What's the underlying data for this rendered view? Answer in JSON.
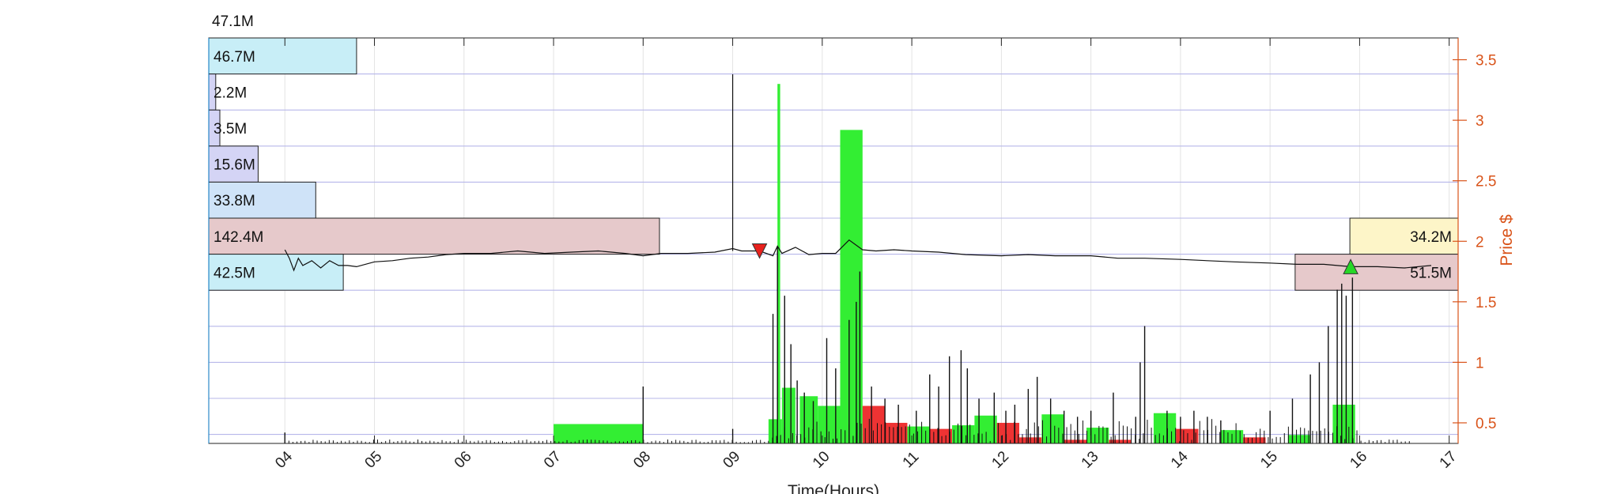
{
  "chart_data": {
    "type": "bar",
    "title": "",
    "top_value_label": "47.1M",
    "xlabel": "Time(Hours)",
    "ylabel": "Price $",
    "x_unit": "hour",
    "xlim": [
      3.15,
      17.1
    ],
    "ylim": [
      0.33,
      3.68
    ],
    "x_ticks": [
      {
        "value": 4,
        "label": "04"
      },
      {
        "value": 5,
        "label": "05"
      },
      {
        "value": 6,
        "label": "06"
      },
      {
        "value": 7,
        "label": "07"
      },
      {
        "value": 8,
        "label": "08"
      },
      {
        "value": 9,
        "label": "09"
      },
      {
        "value": 10,
        "label": "10"
      },
      {
        "value": 11,
        "label": "11"
      },
      {
        "value": 12,
        "label": "12"
      },
      {
        "value": 13,
        "label": "13"
      },
      {
        "value": 14,
        "label": "14"
      },
      {
        "value": 15,
        "label": "15"
      },
      {
        "value": 16,
        "label": "16"
      },
      {
        "value": 17,
        "label": "17"
      }
    ],
    "y_ticks": [
      {
        "value": 0.5,
        "label": "0.5"
      },
      {
        "value": 1,
        "label": "1"
      },
      {
        "value": 1.5,
        "label": "1.5"
      },
      {
        "value": 2,
        "label": "2"
      },
      {
        "value": 2.5,
        "label": "2.5"
      },
      {
        "value": 3,
        "label": "3"
      },
      {
        "value": 3.5,
        "label": "3.5"
      }
    ],
    "grid": true,
    "volume_profile_left": [
      {
        "label": "46.7M",
        "value_m": 46.7,
        "color": "#c8eef7"
      },
      {
        "label": "2.2M",
        "value_m": 2.2,
        "color": "#d4d4f5"
      },
      {
        "label": "3.5M",
        "value_m": 3.5,
        "color": "#d4d4f5"
      },
      {
        "label": "15.6M",
        "value_m": 15.6,
        "color": "#d4d4f5"
      },
      {
        "label": "33.8M",
        "value_m": 33.8,
        "color": "#cfe3f8"
      },
      {
        "label": "142.4M",
        "value_m": 142.4,
        "color": "#e6c9cb"
      },
      {
        "label": "42.5M",
        "value_m": 42.5,
        "color": "#c8eef7"
      }
    ],
    "volume_profile_right": [
      {
        "label": "34.2M",
        "value_m": 34.2,
        "color": "#fdf5c8"
      },
      {
        "label": "51.5M",
        "value_m": 51.5,
        "color": "#e6c9cb"
      }
    ],
    "price_series": {
      "x": [
        4.0,
        4.05,
        4.1,
        4.15,
        4.2,
        4.3,
        4.4,
        4.5,
        4.6,
        4.7,
        4.8,
        5.0,
        5.2,
        5.4,
        5.6,
        5.8,
        6.0,
        6.3,
        6.6,
        6.9,
        7.2,
        7.5,
        7.8,
        8.0,
        8.2,
        8.5,
        8.8,
        9.0,
        9.1,
        9.3,
        9.45,
        9.5,
        9.55,
        9.7,
        9.85,
        10.0,
        10.15,
        10.3,
        10.45,
        10.6,
        10.8,
        11.0,
        11.3,
        11.6,
        12.0,
        12.3,
        12.6,
        13.0,
        13.3,
        13.6,
        14.0,
        14.3,
        14.6,
        15.0,
        15.3,
        15.6,
        15.9,
        16.2,
        16.5,
        16.8
      ],
      "y": [
        1.93,
        1.86,
        1.76,
        1.86,
        1.8,
        1.84,
        1.78,
        1.84,
        1.8,
        1.8,
        1.79,
        1.83,
        1.84,
        1.86,
        1.87,
        1.89,
        1.9,
        1.9,
        1.92,
        1.9,
        1.91,
        1.92,
        1.9,
        1.88,
        1.9,
        1.9,
        1.91,
        1.94,
        1.92,
        1.92,
        1.88,
        1.96,
        1.9,
        1.95,
        1.89,
        1.9,
        1.9,
        2.01,
        1.93,
        1.92,
        1.93,
        1.92,
        1.91,
        1.89,
        1.88,
        1.89,
        1.88,
        1.88,
        1.86,
        1.86,
        1.85,
        1.84,
        1.83,
        1.82,
        1.81,
        1.81,
        1.79,
        1.79,
        1.78,
        1.8
      ]
    },
    "price_spike": {
      "x": 9.0,
      "y": 3.38
    },
    "markers": [
      {
        "kind": "sell",
        "x": 9.3,
        "y": 1.92,
        "color": "#e8211d"
      },
      {
        "kind": "buy",
        "x": 15.9,
        "y": 1.79,
        "color": "#27d827"
      }
    ],
    "interval_volume_bars": [
      {
        "x0": 7.0,
        "x1": 8.0,
        "top": 0.49,
        "color": "#33ee33"
      },
      {
        "x0": 9.4,
        "x1": 9.55,
        "top": 0.53,
        "color": "#33ee33"
      },
      {
        "x0": 9.5,
        "x1": 9.53,
        "top": 3.3,
        "color": "#33ee33"
      },
      {
        "x0": 9.55,
        "x1": 9.7,
        "top": 0.79,
        "color": "#33ee33"
      },
      {
        "x0": 9.75,
        "x1": 9.95,
        "top": 0.72,
        "color": "#33ee33"
      },
      {
        "x0": 9.95,
        "x1": 10.2,
        "top": 0.64,
        "color": "#33ee33"
      },
      {
        "x0": 10.2,
        "x1": 10.45,
        "top": 2.92,
        "color": "#33ee33"
      },
      {
        "x0": 10.45,
        "x1": 10.7,
        "top": 0.64,
        "color": "#ee3333"
      },
      {
        "x0": 10.7,
        "x1": 10.95,
        "top": 0.5,
        "color": "#ee3333"
      },
      {
        "x0": 10.95,
        "x1": 11.2,
        "top": 0.47,
        "color": "#33ee33"
      },
      {
        "x0": 11.2,
        "x1": 11.45,
        "top": 0.45,
        "color": "#ee3333"
      },
      {
        "x0": 11.45,
        "x1": 11.7,
        "top": 0.48,
        "color": "#33ee33"
      },
      {
        "x0": 11.7,
        "x1": 11.95,
        "top": 0.56,
        "color": "#33ee33"
      },
      {
        "x0": 11.95,
        "x1": 12.2,
        "top": 0.5,
        "color": "#ee3333"
      },
      {
        "x0": 12.2,
        "x1": 12.45,
        "top": 0.38,
        "color": "#ee3333"
      },
      {
        "x0": 12.45,
        "x1": 12.7,
        "top": 0.57,
        "color": "#33ee33"
      },
      {
        "x0": 12.7,
        "x1": 12.95,
        "top": 0.36,
        "color": "#ee3333"
      },
      {
        "x0": 12.95,
        "x1": 13.2,
        "top": 0.46,
        "color": "#33ee33"
      },
      {
        "x0": 13.2,
        "x1": 13.45,
        "top": 0.36,
        "color": "#ee3333"
      },
      {
        "x0": 13.7,
        "x1": 13.95,
        "top": 0.58,
        "color": "#33ee33"
      },
      {
        "x0": 13.95,
        "x1": 14.2,
        "top": 0.45,
        "color": "#ee3333"
      },
      {
        "x0": 14.45,
        "x1": 14.7,
        "top": 0.44,
        "color": "#33ee33"
      },
      {
        "x0": 14.7,
        "x1": 14.95,
        "top": 0.38,
        "color": "#ee3333"
      },
      {
        "x0": 15.2,
        "x1": 15.45,
        "top": 0.4,
        "color": "#33ee33"
      },
      {
        "x0": 15.7,
        "x1": 15.95,
        "top": 0.65,
        "color": "#33ee33"
      }
    ],
    "trade_volume_spikes": [
      {
        "x": 4.0,
        "top": 0.42
      },
      {
        "x": 8.0,
        "top": 0.8
      },
      {
        "x": 9.0,
        "top": 0.45
      },
      {
        "x": 9.45,
        "top": 1.4
      },
      {
        "x": 9.5,
        "top": 1.95
      },
      {
        "x": 9.58,
        "top": 1.55
      },
      {
        "x": 9.65,
        "top": 1.15
      },
      {
        "x": 9.72,
        "top": 0.85
      },
      {
        "x": 9.8,
        "top": 0.75
      },
      {
        "x": 9.9,
        "top": 0.68
      },
      {
        "x": 10.05,
        "top": 1.2
      },
      {
        "x": 10.15,
        "top": 0.95
      },
      {
        "x": 10.3,
        "top": 1.35
      },
      {
        "x": 10.38,
        "top": 1.5
      },
      {
        "x": 10.42,
        "top": 1.75
      },
      {
        "x": 10.55,
        "top": 0.8
      },
      {
        "x": 10.7,
        "top": 0.7
      },
      {
        "x": 10.85,
        "top": 0.65
      },
      {
        "x": 11.05,
        "top": 0.6
      },
      {
        "x": 11.2,
        "top": 0.9
      },
      {
        "x": 11.3,
        "top": 0.8
      },
      {
        "x": 11.42,
        "top": 1.05
      },
      {
        "x": 11.55,
        "top": 1.1
      },
      {
        "x": 11.62,
        "top": 0.95
      },
      {
        "x": 11.75,
        "top": 0.7
      },
      {
        "x": 11.92,
        "top": 0.75
      },
      {
        "x": 12.05,
        "top": 0.6
      },
      {
        "x": 12.15,
        "top": 0.65
      },
      {
        "x": 12.3,
        "top": 0.78
      },
      {
        "x": 12.4,
        "top": 0.88
      },
      {
        "x": 12.55,
        "top": 0.7
      },
      {
        "x": 12.7,
        "top": 0.6
      },
      {
        "x": 12.85,
        "top": 0.55
      },
      {
        "x": 13.0,
        "top": 0.6
      },
      {
        "x": 13.25,
        "top": 0.75
      },
      {
        "x": 13.5,
        "top": 0.55
      },
      {
        "x": 13.55,
        "top": 1.0
      },
      {
        "x": 13.6,
        "top": 1.3
      },
      {
        "x": 13.85,
        "top": 0.6
      },
      {
        "x": 14.0,
        "top": 0.55
      },
      {
        "x": 14.15,
        "top": 0.6
      },
      {
        "x": 14.3,
        "top": 0.55
      },
      {
        "x": 14.45,
        "top": 0.52
      },
      {
        "x": 15.0,
        "top": 0.6
      },
      {
        "x": 15.25,
        "top": 0.7
      },
      {
        "x": 15.45,
        "top": 0.9
      },
      {
        "x": 15.55,
        "top": 1.0
      },
      {
        "x": 15.65,
        "top": 1.3
      },
      {
        "x": 15.75,
        "top": 1.6
      },
      {
        "x": 15.8,
        "top": 1.65
      },
      {
        "x": 15.85,
        "top": 1.55
      },
      {
        "x": 15.92,
        "top": 1.7
      }
    ],
    "legend": "none"
  }
}
